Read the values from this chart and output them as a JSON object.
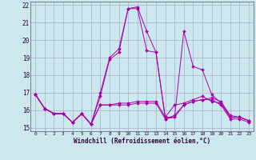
{
  "xlabel": "Windchill (Refroidissement éolien,°C)",
  "xlim": [
    -0.5,
    23.5
  ],
  "ylim": [
    14.8,
    22.2
  ],
  "yticks": [
    15,
    16,
    17,
    18,
    19,
    20,
    21,
    22
  ],
  "xticks": [
    0,
    1,
    2,
    3,
    4,
    5,
    6,
    7,
    8,
    9,
    10,
    11,
    12,
    13,
    14,
    15,
    16,
    17,
    18,
    19,
    20,
    21,
    22,
    23
  ],
  "background_color": "#cce8ef",
  "grid_color": "#aaaacc",
  "line_color": "#aa00aa",
  "lines": [
    [
      16.9,
      16.1,
      15.8,
      15.8,
      15.3,
      15.8,
      15.2,
      16.8,
      18.9,
      19.3,
      21.8,
      21.8,
      19.4,
      19.3,
      15.6,
      15.6,
      16.3,
      16.5,
      16.6,
      16.7,
      16.5,
      15.7,
      15.6,
      15.4
    ],
    [
      16.9,
      16.1,
      15.8,
      15.8,
      15.3,
      15.8,
      15.2,
      17.0,
      19.0,
      19.5,
      21.8,
      21.9,
      20.5,
      19.3,
      15.5,
      15.6,
      20.5,
      18.5,
      18.3,
      16.9,
      16.4,
      15.6,
      15.6,
      15.4
    ],
    [
      16.9,
      16.1,
      15.8,
      15.8,
      15.3,
      15.8,
      15.2,
      16.3,
      16.3,
      16.4,
      16.4,
      16.5,
      16.5,
      16.5,
      15.6,
      16.3,
      16.4,
      16.6,
      16.8,
      16.5,
      16.4,
      15.6,
      15.6,
      15.4
    ],
    [
      16.9,
      16.1,
      15.8,
      15.8,
      15.3,
      15.8,
      15.2,
      16.3,
      16.3,
      16.3,
      16.3,
      16.4,
      16.4,
      16.4,
      15.5,
      15.7,
      16.3,
      16.5,
      16.6,
      16.6,
      16.3,
      15.5,
      15.5,
      15.3
    ]
  ]
}
